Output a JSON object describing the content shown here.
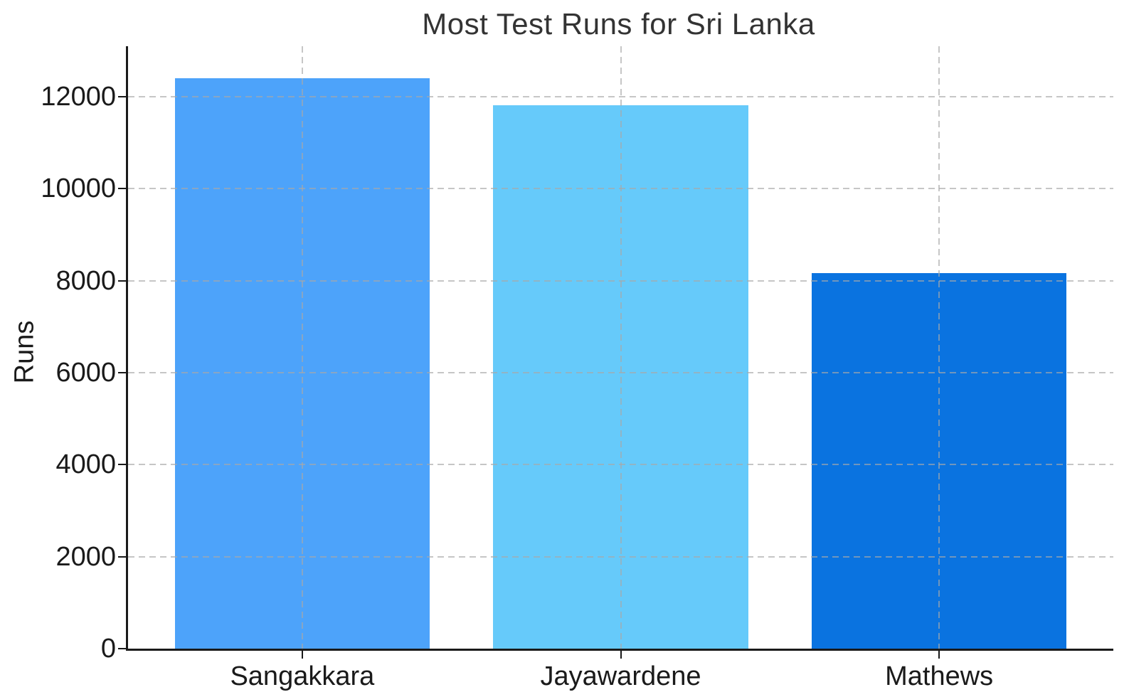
{
  "chart_data": {
    "type": "bar",
    "title": "Most Test Runs for Sri Lanka",
    "xlabel": "",
    "ylabel": "Runs",
    "categories": [
      "Sangakkara",
      "Jayawardene",
      "Mathews"
    ],
    "values": [
      12400,
      11814,
      8167
    ],
    "bar_colors": [
      "#4DA3FA",
      "#66CAFA",
      "#0A73E0"
    ],
    "ylim": [
      0,
      13100
    ],
    "yticks": [
      0,
      2000,
      4000,
      6000,
      8000,
      10000,
      12000
    ],
    "bar_width_ratio": 0.8,
    "grid": "dashed-both-axes",
    "legend": "none",
    "colors": {
      "background": "#ffffff",
      "axis": "#1a1a1a",
      "tick_text": "#1a1a1a",
      "title_text": "#333333",
      "gridline": "#c9c9c9"
    }
  }
}
